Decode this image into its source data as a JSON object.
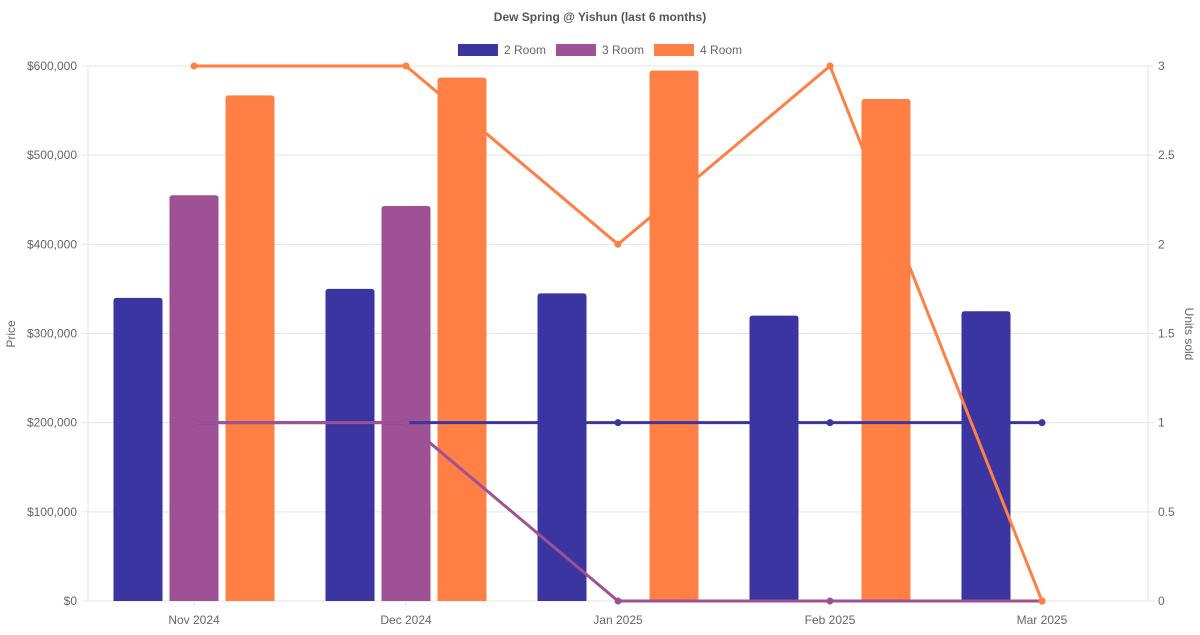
{
  "chart_data": {
    "type": "bar",
    "title": "Dew Spring @ Yishun (last 6 months)",
    "categories": [
      "Nov 2024",
      "Dec 2024",
      "Jan 2025",
      "Feb 2025",
      "Mar 2025"
    ],
    "y_left": {
      "label": "Price",
      "range": [
        0,
        600000
      ],
      "ticks": [
        0,
        100000,
        200000,
        300000,
        400000,
        500000,
        600000
      ],
      "tick_labels": [
        "$0",
        "$100,000",
        "$200,000",
        "$300,000",
        "$400,000",
        "$500,000",
        "$600,000"
      ]
    },
    "y_right": {
      "label": "Units sold",
      "range": [
        0,
        3
      ],
      "ticks": [
        0,
        0.5,
        1,
        1.5,
        2,
        2.5,
        3
      ],
      "tick_labels": [
        "0",
        "0.5",
        "1",
        "1.5",
        "2",
        "2.5",
        "3"
      ]
    },
    "grid": true,
    "legend_position": "top-center",
    "series": [
      {
        "name": "2 Room",
        "color": "#3a35a0",
        "price": [
          340000,
          350000,
          345000,
          320000,
          325000
        ],
        "units": [
          1,
          1,
          1,
          1,
          1
        ]
      },
      {
        "name": "3 Room",
        "color": "#9e5194",
        "price": [
          455000,
          443000,
          null,
          null,
          null
        ],
        "units": [
          1,
          1,
          0,
          0,
          0
        ]
      },
      {
        "name": "4 Room",
        "color": "#ff7f45",
        "price": [
          567000,
          587000,
          595000,
          563000,
          null
        ],
        "units": [
          3,
          3,
          2,
          3,
          0
        ]
      }
    ]
  }
}
